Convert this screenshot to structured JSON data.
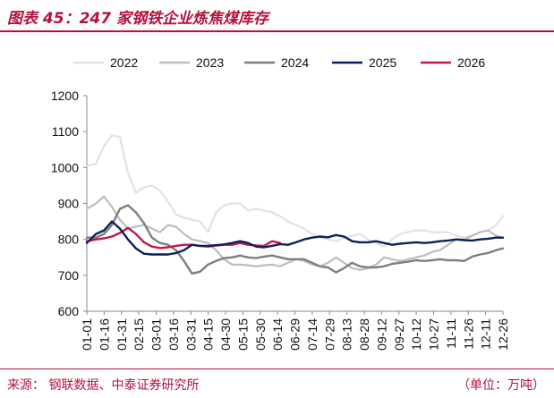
{
  "header": {
    "title": "图表 45：247 家钢铁企业炼焦煤库存"
  },
  "footer": {
    "source": "来源：  钢联数据、中泰证券研究所",
    "unit": "（单位：万吨）"
  },
  "colors": {
    "accent": "#b5123a"
  },
  "chart_data": {
    "type": "line",
    "title": "247 家钢铁企业炼焦煤库存",
    "ylim": [
      600,
      1200
    ],
    "yticks": [
      600,
      700,
      800,
      900,
      1000,
      1100,
      1200
    ],
    "x_ticks": [
      "01-01",
      "01-16",
      "01-31",
      "02-15",
      "03-01",
      "03-16",
      "03-31",
      "04-15",
      "04-30",
      "05-15",
      "05-30",
      "06-14",
      "06-29",
      "07-14",
      "07-29",
      "08-13",
      "08-28",
      "09-12",
      "09-27",
      "10-12",
      "10-27",
      "11-11",
      "11-26",
      "12-11",
      "12-26"
    ],
    "legend_position": "top",
    "grid": false,
    "series": [
      {
        "name": "2022",
        "color": "#e2e2e2",
        "width": 2.2,
        "points": [
          [
            0,
            1005
          ],
          [
            8,
            1010
          ],
          [
            15,
            1060
          ],
          [
            22,
            1090
          ],
          [
            29,
            1085
          ],
          [
            36,
            985
          ],
          [
            43,
            930
          ],
          [
            50,
            945
          ],
          [
            57,
            950
          ],
          [
            64,
            935
          ],
          [
            71,
            905
          ],
          [
            78,
            870
          ],
          [
            85,
            860
          ],
          [
            92,
            855
          ],
          [
            99,
            850
          ],
          [
            106,
            820
          ],
          [
            113,
            875
          ],
          [
            120,
            895
          ],
          [
            127,
            900
          ],
          [
            134,
            900
          ],
          [
            141,
            880
          ],
          [
            148,
            885
          ],
          [
            155,
            880
          ],
          [
            162,
            875
          ],
          [
            169,
            865
          ],
          [
            176,
            850
          ],
          [
            183,
            840
          ],
          [
            190,
            830
          ],
          [
            197,
            815
          ],
          [
            204,
            805
          ],
          [
            211,
            800
          ],
          [
            218,
            795
          ],
          [
            225,
            805
          ],
          [
            232,
            810
          ],
          [
            239,
            815
          ],
          [
            246,
            800
          ],
          [
            253,
            790
          ],
          [
            260,
            780
          ],
          [
            267,
            800
          ],
          [
            274,
            815
          ],
          [
            281,
            820
          ],
          [
            288,
            825
          ],
          [
            295,
            825
          ],
          [
            302,
            820
          ],
          [
            309,
            820
          ],
          [
            316,
            820
          ],
          [
            323,
            810
          ],
          [
            330,
            805
          ],
          [
            337,
            810
          ],
          [
            344,
            820
          ],
          [
            351,
            825
          ],
          [
            358,
            840
          ],
          [
            364,
            865
          ]
        ]
      },
      {
        "name": "2023",
        "color": "#bdbdbd",
        "width": 2.2,
        "points": [
          [
            0,
            885
          ],
          [
            8,
            900
          ],
          [
            15,
            920
          ],
          [
            22,
            890
          ],
          [
            29,
            855
          ],
          [
            36,
            830
          ],
          [
            43,
            835
          ],
          [
            50,
            840
          ],
          [
            57,
            830
          ],
          [
            64,
            820
          ],
          [
            71,
            840
          ],
          [
            78,
            835
          ],
          [
            85,
            815
          ],
          [
            92,
            800
          ],
          [
            99,
            795
          ],
          [
            106,
            790
          ],
          [
            113,
            770
          ],
          [
            120,
            745
          ],
          [
            127,
            730
          ],
          [
            134,
            730
          ],
          [
            141,
            728
          ],
          [
            148,
            725
          ],
          [
            155,
            728
          ],
          [
            162,
            730
          ],
          [
            169,
            725
          ],
          [
            176,
            735
          ],
          [
            183,
            745
          ],
          [
            190,
            740
          ],
          [
            197,
            730
          ],
          [
            204,
            725
          ],
          [
            211,
            735
          ],
          [
            218,
            750
          ],
          [
            225,
            735
          ],
          [
            232,
            720
          ],
          [
            239,
            715
          ],
          [
            246,
            720
          ],
          [
            253,
            730
          ],
          [
            260,
            750
          ],
          [
            267,
            745
          ],
          [
            274,
            740
          ],
          [
            281,
            745
          ],
          [
            288,
            750
          ],
          [
            295,
            755
          ],
          [
            302,
            765
          ],
          [
            309,
            770
          ],
          [
            316,
            785
          ],
          [
            323,
            800
          ],
          [
            330,
            800
          ],
          [
            337,
            810
          ],
          [
            344,
            820
          ],
          [
            351,
            825
          ],
          [
            358,
            810
          ],
          [
            364,
            805
          ]
        ]
      },
      {
        "name": "2024",
        "color": "#7f7f7f",
        "width": 2.4,
        "points": [
          [
            0,
            805
          ],
          [
            8,
            805
          ],
          [
            15,
            815
          ],
          [
            22,
            840
          ],
          [
            29,
            885
          ],
          [
            36,
            895
          ],
          [
            43,
            875
          ],
          [
            50,
            845
          ],
          [
            57,
            805
          ],
          [
            64,
            790
          ],
          [
            71,
            785
          ],
          [
            78,
            770
          ],
          [
            85,
            740
          ],
          [
            92,
            705
          ],
          [
            99,
            710
          ],
          [
            106,
            730
          ],
          [
            113,
            740
          ],
          [
            120,
            748
          ],
          [
            127,
            750
          ],
          [
            134,
            755
          ],
          [
            141,
            750
          ],
          [
            148,
            748
          ],
          [
            155,
            752
          ],
          [
            162,
            755
          ],
          [
            169,
            750
          ],
          [
            176,
            745
          ],
          [
            183,
            745
          ],
          [
            190,
            745
          ],
          [
            197,
            735
          ],
          [
            204,
            725
          ],
          [
            211,
            722
          ],
          [
            218,
            708
          ],
          [
            225,
            720
          ],
          [
            232,
            735
          ],
          [
            239,
            725
          ],
          [
            246,
            722
          ],
          [
            253,
            722
          ],
          [
            260,
            725
          ],
          [
            267,
            732
          ],
          [
            274,
            735
          ],
          [
            281,
            738
          ],
          [
            288,
            742
          ],
          [
            295,
            740
          ],
          [
            302,
            742
          ],
          [
            309,
            745
          ],
          [
            316,
            742
          ],
          [
            323,
            742
          ],
          [
            330,
            740
          ],
          [
            337,
            752
          ],
          [
            344,
            758
          ],
          [
            351,
            762
          ],
          [
            358,
            770
          ],
          [
            364,
            775
          ]
        ]
      },
      {
        "name": "2025",
        "color": "#0d1f5c",
        "width": 2.4,
        "points": [
          [
            0,
            790
          ],
          [
            8,
            815
          ],
          [
            15,
            825
          ],
          [
            22,
            850
          ],
          [
            29,
            830
          ],
          [
            36,
            800
          ],
          [
            43,
            775
          ],
          [
            50,
            760
          ],
          [
            57,
            758
          ],
          [
            64,
            758
          ],
          [
            71,
            758
          ],
          [
            78,
            762
          ],
          [
            85,
            770
          ],
          [
            92,
            785
          ],
          [
            99,
            782
          ],
          [
            106,
            782
          ],
          [
            113,
            784
          ],
          [
            120,
            786
          ],
          [
            127,
            790
          ],
          [
            134,
            795
          ],
          [
            141,
            790
          ],
          [
            148,
            780
          ],
          [
            155,
            778
          ],
          [
            162,
            782
          ],
          [
            169,
            787
          ],
          [
            176,
            785
          ],
          [
            183,
            792
          ],
          [
            190,
            800
          ],
          [
            197,
            805
          ],
          [
            204,
            808
          ],
          [
            211,
            806
          ],
          [
            218,
            812
          ],
          [
            225,
            808
          ],
          [
            232,
            795
          ],
          [
            239,
            792
          ],
          [
            246,
            792
          ],
          [
            253,
            795
          ],
          [
            260,
            790
          ],
          [
            267,
            785
          ],
          [
            274,
            788
          ],
          [
            281,
            790
          ],
          [
            288,
            792
          ],
          [
            295,
            790
          ],
          [
            302,
            792
          ],
          [
            309,
            795
          ],
          [
            316,
            797
          ],
          [
            323,
            800
          ],
          [
            330,
            798
          ],
          [
            337,
            797
          ],
          [
            344,
            800
          ],
          [
            351,
            802
          ],
          [
            358,
            805
          ],
          [
            364,
            805
          ]
        ]
      },
      {
        "name": "2026",
        "color": "#c41a45",
        "width": 2.4,
        "points": [
          [
            0,
            795
          ],
          [
            8,
            800
          ],
          [
            15,
            803
          ],
          [
            22,
            808
          ],
          [
            29,
            818
          ],
          [
            36,
            832
          ],
          [
            43,
            815
          ],
          [
            50,
            792
          ],
          [
            57,
            780
          ],
          [
            64,
            776
          ],
          [
            71,
            778
          ],
          [
            78,
            782
          ],
          [
            85,
            785
          ],
          [
            92,
            785
          ],
          [
            99,
            782
          ],
          [
            106,
            780
          ],
          [
            113,
            783
          ],
          [
            120,
            785
          ],
          [
            127,
            785
          ],
          [
            134,
            790
          ],
          [
            141,
            785
          ],
          [
            148,
            783
          ],
          [
            155,
            782
          ],
          [
            162,
            795
          ],
          [
            169,
            790
          ]
        ]
      }
    ]
  }
}
